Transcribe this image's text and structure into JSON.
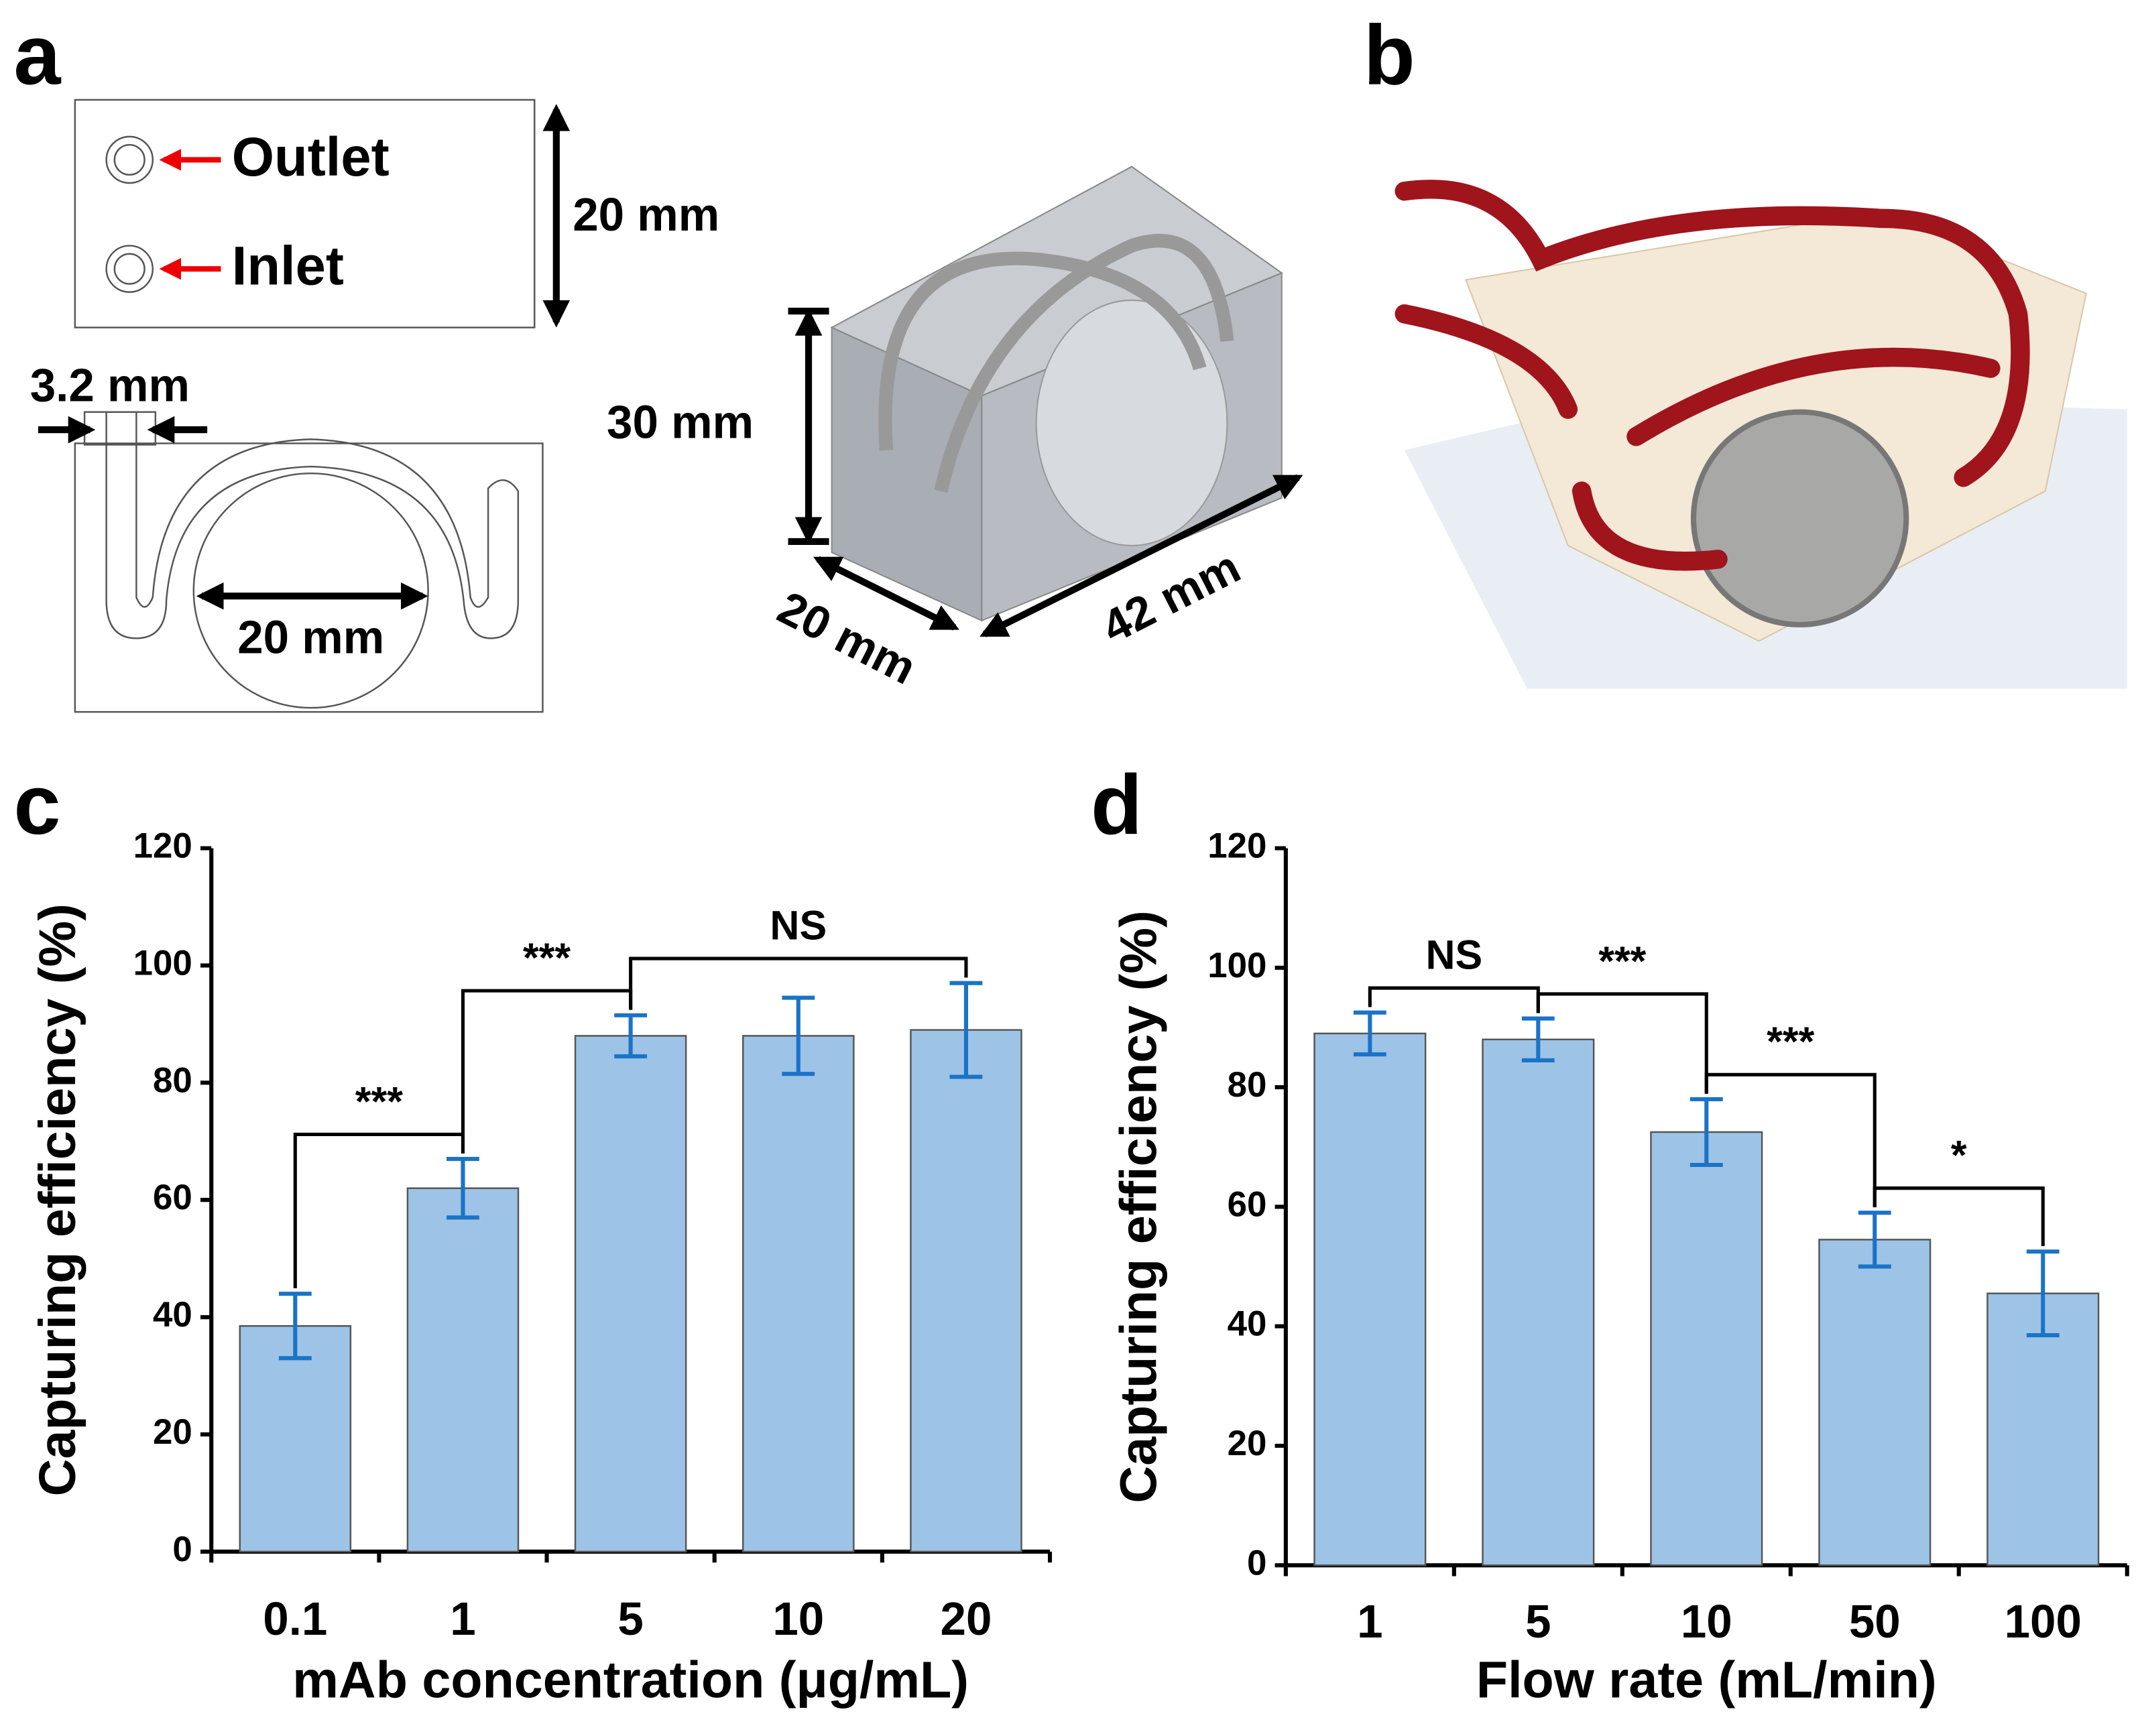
{
  "panels": {
    "a": "a",
    "b": "b",
    "c": "c",
    "d": "d"
  },
  "diagram": {
    "outlet": "Outlet",
    "inlet": "Inlet",
    "top_height": "20 mm",
    "channel_width": "3.2 mm",
    "magnet_diameter": "20 mm",
    "box_height": "30 mm",
    "box_depth": "20 mm",
    "box_length": "42 mm"
  },
  "chart_data": [
    {
      "type": "bar",
      "xlabel": "mAb concentration (μg/mL)",
      "ylabel": "Capturing efficiency (%)",
      "categories": [
        "0.1",
        "1",
        "5",
        "10",
        "20"
      ],
      "values": [
        38.5,
        62,
        88,
        88,
        89
      ],
      "errors": [
        5.5,
        5,
        3.5,
        6.5,
        8
      ],
      "color": "#9dc3e6",
      "error_color": "#1a73c7",
      "ylim": [
        0,
        120
      ],
      "yticks": [
        0,
        20,
        40,
        60,
        80,
        100,
        120
      ],
      "annotations": [
        {
          "text": "***",
          "between": [
            "0.1",
            "1"
          ]
        },
        {
          "text": "***",
          "between": [
            "1",
            "5"
          ]
        },
        {
          "text": "NS",
          "between": [
            "5",
            "20"
          ]
        }
      ]
    },
    {
      "type": "bar",
      "xlabel": "Flow rate (mL/min)",
      "ylabel": "Capturing efficiency (%)",
      "categories": [
        "1",
        "5",
        "10",
        "50",
        "100"
      ],
      "values": [
        89,
        88,
        72.5,
        54.5,
        45.5
      ],
      "errors": [
        3.5,
        3.5,
        5.5,
        4.5,
        7
      ],
      "color": "#9dc3e6",
      "error_color": "#1a73c7",
      "ylim": [
        0,
        120
      ],
      "yticks": [
        0,
        20,
        40,
        60,
        80,
        100,
        120
      ],
      "annotations": [
        {
          "text": "NS",
          "between": [
            "1",
            "5"
          ]
        },
        {
          "text": "***",
          "between": [
            "5",
            "10"
          ]
        },
        {
          "text": "***",
          "between": [
            "10",
            "50"
          ]
        },
        {
          "text": "*",
          "between": [
            "50",
            "100"
          ]
        }
      ]
    }
  ]
}
